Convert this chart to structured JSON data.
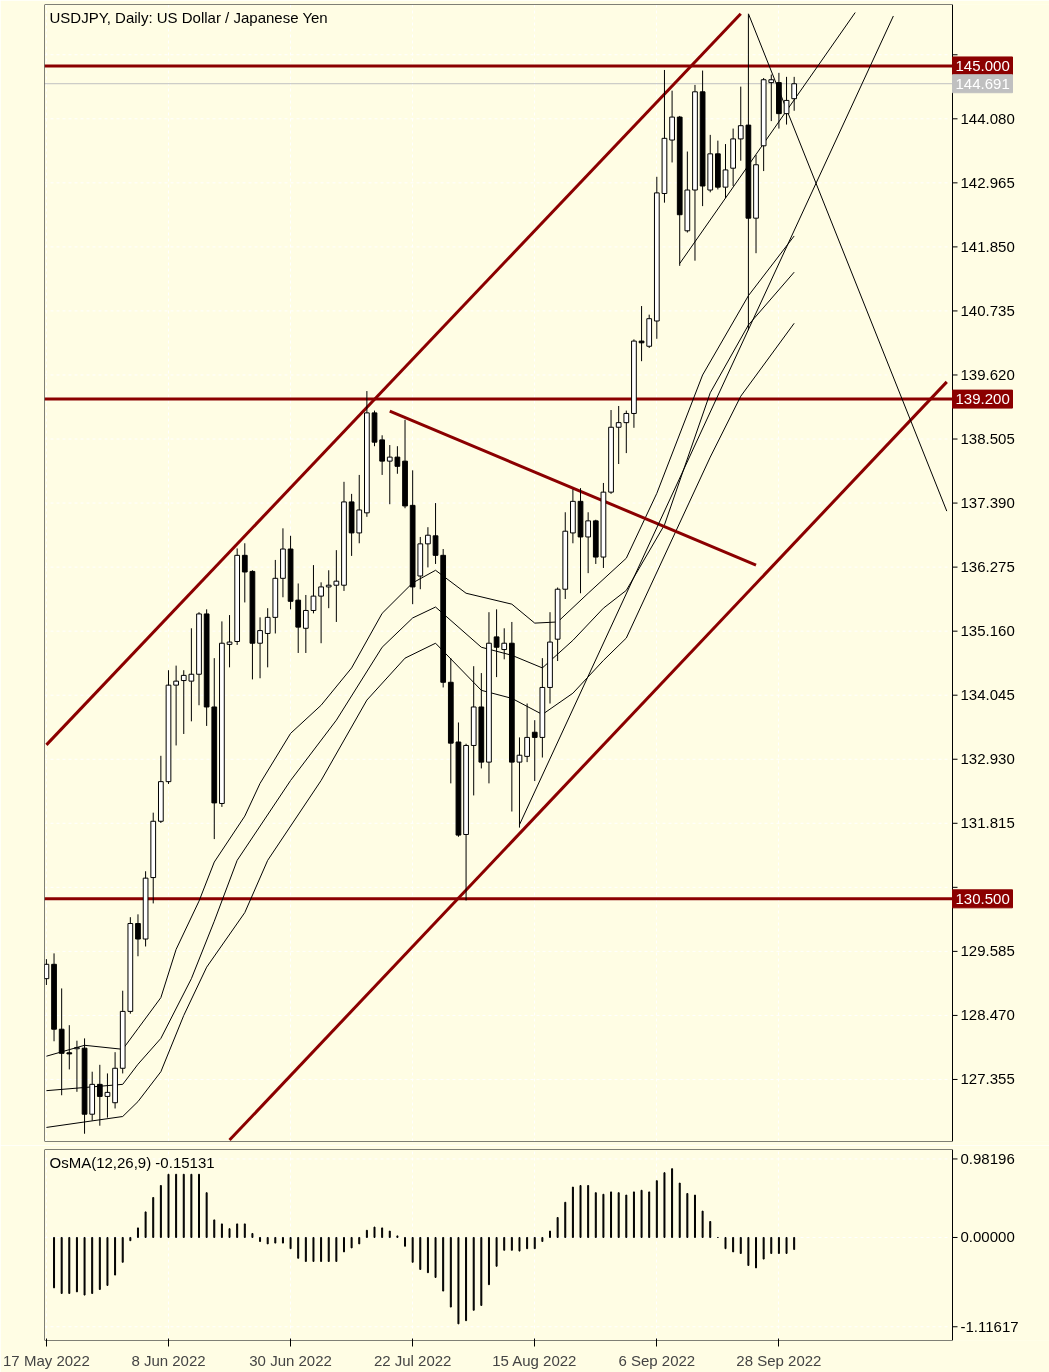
{
  "chart_data": [
    {
      "type": "candlestick",
      "title": "USDJPY, Daily:  US Dollar / Japanese Yen",
      "categories": [
        "17 May 2022",
        null,
        null,
        null,
        null,
        null,
        null,
        null,
        null,
        null,
        null,
        null,
        null,
        null,
        null,
        null,
        "8 Jun 2022",
        null,
        null,
        null,
        null,
        null,
        null,
        null,
        null,
        null,
        null,
        null,
        null,
        null,
        null,
        null,
        "30 Jun 2022",
        null,
        null,
        null,
        null,
        null,
        null,
        null,
        null,
        null,
        null,
        null,
        null,
        null,
        null,
        null,
        "22 Jul 2022",
        null,
        null,
        null,
        null,
        null,
        null,
        null,
        null,
        null,
        null,
        null,
        null,
        null,
        null,
        null,
        "15 Aug 2022",
        null,
        null,
        null,
        null,
        null,
        null,
        null,
        null,
        null,
        null,
        null,
        null,
        null,
        null,
        null,
        "6 Sep 2022",
        null,
        null,
        null,
        null,
        null,
        null,
        null,
        null,
        null,
        null,
        null,
        null,
        null,
        null,
        null,
        "28 Sep 2022",
        null,
        null,
        null,
        null,
        null,
        null,
        null,
        null,
        null,
        null,
        null,
        null,
        null,
        null,
        null,
        null,
        null,
        null,
        null,
        null,
        null,
        null
      ],
      "ylim": [
        126.275,
        146.07
      ],
      "yticks": [
        127.355,
        {
          "value": 128.47,
          "label": "128.470"
        },
        129.585,
        {
          "value": 130.7,
          "label": null
        },
        131.815,
        {
          "value": 132.93,
          "label": "132.930"
        },
        134.045,
        {
          "value": 135.16,
          "label": "135.160"
        },
        136.275,
        {
          "value": 137.39,
          "label": "137.390"
        },
        138.505,
        {
          "value": 139.62,
          "label": "139.620"
        },
        140.735,
        {
          "value": 141.85,
          "label": "141.850"
        },
        142.965,
        {
          "value": 144.08,
          "label": "144.080"
        },
        {
          "value": 145.195,
          "label": null
        }
      ],
      "tick_labels": "y",
      "grid": true,
      "ohlc": [
        [
          129.11,
          129.45,
          129.0,
          129.36
        ],
        [
          129.36,
          129.55,
          128.02,
          128.23
        ],
        [
          128.23,
          128.94,
          127.08,
          127.81
        ],
        [
          127.82,
          128.3,
          127.53,
          127.8
        ],
        [
          127.89,
          128.03,
          127.14,
          127.91
        ],
        [
          127.9,
          128.07,
          126.41,
          126.75
        ],
        [
          126.75,
          127.49,
          126.64,
          127.27
        ],
        [
          127.27,
          127.61,
          126.55,
          127.06
        ],
        [
          127.06,
          127.46,
          126.69,
          127.13
        ],
        [
          126.95,
          127.83,
          126.85,
          127.55
        ],
        [
          127.55,
          128.9,
          127.46,
          128.54
        ],
        [
          128.54,
          130.18,
          128.5,
          130.07
        ],
        [
          130.07,
          130.23,
          129.5,
          129.8
        ],
        [
          129.8,
          130.98,
          129.67,
          130.86
        ],
        [
          130.87,
          132.0,
          130.42,
          131.85
        ],
        [
          131.85,
          132.99,
          131.82,
          132.54
        ],
        [
          132.54,
          134.48,
          132.5,
          134.22
        ],
        [
          134.22,
          134.56,
          133.17,
          134.29
        ],
        [
          134.3,
          134.48,
          133.37,
          134.39
        ],
        [
          134.29,
          135.21,
          133.59,
          134.41
        ],
        [
          134.41,
          135.49,
          133.87,
          135.46
        ],
        [
          135.46,
          135.54,
          133.51,
          133.84
        ],
        [
          133.84,
          134.69,
          131.54,
          132.17
        ],
        [
          132.16,
          135.33,
          132.1,
          134.95
        ],
        [
          134.93,
          135.44,
          134.53,
          134.97
        ],
        [
          134.98,
          136.6,
          134.92,
          136.48
        ],
        [
          136.48,
          136.69,
          135.66,
          136.19
        ],
        [
          136.2,
          136.22,
          134.32,
          134.95
        ],
        [
          134.95,
          135.4,
          134.34,
          135.17
        ],
        [
          135.12,
          135.56,
          134.53,
          135.4
        ],
        [
          135.4,
          136.4,
          135.12,
          136.08
        ],
        [
          136.08,
          136.95,
          135.75,
          136.59
        ],
        [
          136.59,
          136.82,
          135.54,
          135.68
        ],
        [
          135.7,
          135.99,
          134.78,
          135.23
        ],
        [
          135.21,
          135.79,
          134.78,
          135.52
        ],
        [
          135.52,
          136.31,
          135.47,
          135.77
        ],
        [
          135.77,
          136.01,
          134.95,
          135.93
        ],
        [
          135.93,
          136.22,
          135.56,
          135.96
        ],
        [
          135.96,
          136.57,
          135.32,
          136.03
        ],
        [
          135.96,
          137.76,
          135.86,
          137.41
        ],
        [
          137.41,
          137.55,
          136.47,
          136.87
        ],
        [
          136.87,
          137.88,
          136.69,
          137.27
        ],
        [
          137.22,
          139.34,
          137.15,
          138.96
        ],
        [
          138.96,
          139.0,
          138.38,
          138.45
        ],
        [
          138.49,
          138.57,
          137.88,
          138.12
        ],
        [
          138.12,
          138.4,
          137.37,
          138.19
        ],
        [
          138.19,
          138.38,
          137.9,
          138.03
        ],
        [
          138.12,
          138.84,
          137.3,
          137.34
        ],
        [
          137.35,
          137.96,
          135.63,
          135.93
        ],
        [
          136.12,
          136.8,
          135.89,
          136.68
        ],
        [
          136.68,
          136.97,
          136.27,
          136.83
        ],
        [
          136.82,
          137.39,
          136.33,
          136.48
        ],
        [
          136.48,
          136.59,
          134.18,
          134.27
        ],
        [
          134.27,
          134.69,
          132.51,
          133.21
        ],
        [
          133.23,
          133.57,
          131.58,
          131.61
        ],
        [
          131.62,
          133.2,
          130.47,
          133.17
        ],
        [
          133.17,
          134.55,
          132.3,
          133.84
        ],
        [
          133.84,
          134.43,
          132.77,
          132.88
        ],
        [
          132.88,
          135.49,
          132.51,
          134.95
        ],
        [
          135.06,
          135.54,
          134.36,
          134.88
        ],
        [
          134.84,
          135.21,
          134.67,
          134.95
        ],
        [
          134.95,
          135.32,
          132.02,
          132.88
        ],
        [
          132.88,
          133.31,
          131.74,
          133.0
        ],
        [
          132.98,
          133.9,
          132.88,
          133.31
        ],
        [
          133.4,
          133.61,
          132.55,
          133.31
        ],
        [
          133.31,
          134.69,
          132.96,
          134.18
        ],
        [
          134.18,
          135.49,
          133.9,
          134.97
        ],
        [
          135.02,
          135.92,
          134.64,
          135.89
        ],
        [
          135.89,
          137.23,
          135.72,
          136.9
        ],
        [
          136.87,
          137.63,
          136.69,
          137.42
        ],
        [
          137.42,
          137.65,
          135.82,
          136.8
        ],
        [
          136.8,
          137.23,
          136.17,
          137.08
        ],
        [
          137.08,
          137.1,
          136.33,
          136.45
        ],
        [
          136.45,
          137.74,
          136.26,
          137.58
        ],
        [
          137.58,
          139.01,
          137.55,
          138.71
        ],
        [
          138.71,
          139.08,
          138.07,
          138.79
        ],
        [
          138.79,
          139.0,
          138.26,
          138.95
        ],
        [
          138.95,
          140.24,
          138.7,
          140.21
        ],
        [
          140.21,
          140.82,
          139.86,
          140.18
        ],
        [
          140.12,
          140.67,
          140.09,
          140.6
        ],
        [
          140.56,
          143.07,
          140.25,
          142.79
        ],
        [
          142.78,
          144.93,
          142.62,
          143.74
        ],
        [
          143.71,
          144.57,
          143.32,
          144.11
        ],
        [
          144.11,
          144.13,
          141.52,
          142.41
        ],
        [
          142.13,
          143.51,
          142.1,
          142.84
        ],
        [
          142.84,
          144.67,
          141.61,
          144.55
        ],
        [
          144.55,
          144.92,
          142.56,
          142.91
        ],
        [
          142.84,
          143.8,
          142.8,
          143.47
        ],
        [
          143.47,
          143.7,
          142.85,
          142.89
        ],
        [
          142.89,
          143.64,
          142.7,
          143.19
        ],
        [
          143.22,
          143.91,
          142.91,
          143.73
        ],
        [
          143.73,
          144.64,
          143.35,
          143.96
        ],
        [
          143.97,
          145.9,
          140.4,
          142.35
        ],
        [
          142.35,
          143.45,
          141.74,
          143.28
        ],
        [
          143.61,
          144.79,
          143.17,
          144.76
        ],
        [
          144.71,
          144.85,
          144.04,
          144.76
        ],
        [
          144.71,
          144.88,
          143.91,
          144.17
        ],
        [
          144.17,
          144.81,
          143.98,
          144.4
        ],
        [
          144.43,
          144.81,
          144.22,
          144.69
        ],
        null,
        null,
        null,
        null,
        null,
        null,
        null,
        null,
        null,
        null,
        null,
        null,
        null,
        null,
        null,
        null,
        null,
        null,
        null,
        null
      ],
      "series": [
        {
          "type": "line",
          "color": "#000000",
          "values": [
            127.76,
            null,
            null,
            null,
            null,
            127.95,
            null,
            null,
            null,
            null,
            127.88,
            null,
            128.24,
            null,
            null,
            128.78,
            null,
            129.62,
            null,
            null,
            130.46,
            null,
            131.14,
            null,
            null,
            null,
            131.94,
            null,
            132.51,
            null,
            null,
            null,
            133.38,
            null,
            null,
            null,
            133.87,
            null,
            null,
            null,
            134.52,
            null,
            null,
            null,
            135.47,
            null,
            null,
            null,
            136.0,
            null,
            null,
            136.22,
            null,
            null,
            null,
            135.82,
            null,
            null,
            null,
            null,
            null,
            135.63,
            null,
            null,
            135.3,
            null,
            null,
            135.32,
            null,
            null,
            null,
            135.82,
            null,
            null,
            null,
            null,
            136.43,
            null,
            null,
            null,
            137.56,
            null,
            null,
            null,
            null,
            null,
            139.62,
            null,
            null,
            null,
            null,
            null,
            141.0,
            null,
            null,
            null,
            null,
            null,
            142.04,
            null,
            null,
            null,
            null,
            null,
            null,
            null,
            null,
            null,
            null,
            null,
            null,
            null,
            null,
            null,
            null,
            null,
            null,
            null,
            null
          ]
        },
        {
          "type": "line",
          "color": "#000000",
          "values": [
            127.16,
            null,
            null,
            null,
            null,
            null,
            null,
            null,
            null,
            null,
            127.27,
            null,
            127.62,
            null,
            null,
            128.07,
            null,
            null,
            null,
            129.11,
            null,
            null,
            130.11,
            null,
            null,
            131.17,
            null,
            null,
            null,
            null,
            null,
            null,
            132.56,
            null,
            null,
            null,
            null,
            null,
            133.61,
            null,
            null,
            null,
            null,
            null,
            134.88,
            null,
            null,
            null,
            135.39,
            null,
            null,
            135.58,
            null,
            null,
            null,
            null,
            null,
            134.88,
            null,
            null,
            null,
            134.74,
            null,
            null,
            null,
            134.52,
            null,
            null,
            null,
            135.0,
            null,
            null,
            null,
            135.56,
            null,
            null,
            135.87,
            null,
            null,
            null,
            null,
            137.01,
            null,
            null,
            null,
            null,
            null,
            139.31,
            null,
            null,
            null,
            null,
            140.49,
            null,
            null,
            null,
            null,
            null,
            141.41,
            null,
            null,
            null,
            null,
            null,
            null,
            null,
            null,
            null,
            null,
            null,
            null,
            null,
            null,
            null,
            null,
            null,
            null,
            null,
            null
          ]
        },
        {
          "type": "line",
          "color": "#000000",
          "values": [
            126.52,
            null,
            null,
            null,
            null,
            null,
            null,
            null,
            null,
            null,
            126.71,
            null,
            126.97,
            null,
            null,
            127.49,
            null,
            null,
            128.47,
            null,
            null,
            129.31,
            null,
            null,
            null,
            null,
            130.26,
            null,
            null,
            131.17,
            null,
            null,
            null,
            null,
            null,
            null,
            132.56,
            null,
            null,
            null,
            null,
            null,
            133.96,
            null,
            null,
            null,
            null,
            134.69,
            null,
            null,
            null,
            134.95,
            null,
            null,
            null,
            null,
            null,
            134.13,
            null,
            null,
            null,
            133.99,
            null,
            null,
            null,
            133.71,
            null,
            null,
            null,
            134.08,
            null,
            null,
            null,
            134.65,
            null,
            null,
            135.04,
            null,
            null,
            null,
            null,
            null,
            null,
            null,
            null,
            null,
            null,
            138.19,
            null,
            null,
            null,
            139.25,
            null,
            null,
            null,
            null,
            null,
            null,
            140.52,
            null,
            null,
            null,
            null,
            null,
            null,
            null,
            null,
            null,
            null,
            null,
            null,
            null,
            null,
            null,
            null,
            null,
            null,
            null,
            null
          ]
        },
        {
          "type": "line",
          "color": "#8b0000",
          "values": [
            133.18,
            null,
            null,
            null,
            null,
            null,
            null,
            null,
            null,
            null,
            null,
            null,
            null,
            null,
            null,
            null,
            null,
            null,
            null,
            null,
            null,
            null,
            null,
            null,
            null,
            null,
            null,
            null,
            null,
            null,
            null,
            null,
            null,
            null,
            null,
            null,
            null,
            null,
            null,
            null,
            null,
            null,
            null,
            null,
            null,
            null,
            null,
            null,
            null,
            null,
            null,
            null,
            null,
            null,
            null,
            null,
            null,
            null,
            null,
            null,
            null,
            null,
            null,
            null,
            null,
            null,
            null,
            null,
            null,
            null,
            null,
            null,
            null,
            null,
            null,
            null,
            null,
            null,
            null,
            null,
            null,
            null,
            null,
            null,
            null,
            null,
            null,
            null,
            null,
            null,
            null,
            145.91,
            null,
            null,
            null,
            null,
            null,
            null,
            null,
            null,
            null,
            null,
            null,
            null,
            null,
            null,
            null,
            null,
            null,
            null,
            null,
            null,
            null,
            null,
            null,
            null,
            null,
            null,
            null
          ]
        },
        {
          "type": "line",
          "color": "#8b0000",
          "values": [
            null,
            null,
            null,
            null,
            null,
            null,
            null,
            null,
            null,
            null,
            null,
            null,
            null,
            null,
            null,
            null,
            null,
            null,
            null,
            null,
            null,
            null,
            null,
            null,
            126.3,
            null,
            null,
            null,
            null,
            null,
            null,
            null,
            null,
            null,
            null,
            null,
            null,
            null,
            null,
            null,
            null,
            null,
            null,
            null,
            null,
            null,
            null,
            null,
            null,
            null,
            null,
            null,
            null,
            null,
            null,
            null,
            null,
            null,
            null,
            null,
            null,
            null,
            null,
            null,
            null,
            null,
            null,
            null,
            null,
            null,
            null,
            null,
            null,
            null,
            null,
            null,
            null,
            null,
            null,
            null,
            null,
            null,
            null,
            null,
            null,
            null,
            null,
            null,
            null,
            null,
            null,
            null,
            null,
            null,
            null,
            null,
            null,
            null,
            null,
            null,
            null,
            null,
            null,
            null,
            null,
            null,
            null,
            null,
            null,
            null,
            null,
            null,
            null,
            null,
            null,
            null,
            null,
            null,
            139.5
          ]
        },
        {
          "type": "line",
          "color": "#8b0000",
          "values": [
            null,
            null,
            null,
            null,
            null,
            null,
            null,
            null,
            null,
            null,
            null,
            null,
            null,
            null,
            null,
            null,
            null,
            null,
            null,
            null,
            null,
            null,
            null,
            null,
            null,
            null,
            null,
            null,
            null,
            null,
            null,
            null,
            null,
            null,
            null,
            null,
            null,
            null,
            null,
            null,
            null,
            null,
            null,
            null,
            null,
            138.99,
            null,
            null,
            null,
            null,
            null,
            null,
            null,
            null,
            null,
            null,
            null,
            null,
            null,
            null,
            null,
            null,
            null,
            null,
            null,
            null,
            null,
            null,
            null,
            null,
            null,
            null,
            null,
            null,
            null,
            null,
            null,
            null,
            null,
            null,
            null,
            null,
            null,
            null,
            null,
            null,
            null,
            null,
            null,
            null,
            null,
            null,
            null,
            136.31,
            null,
            null,
            null,
            null,
            null,
            null,
            null,
            null,
            null,
            null,
            null,
            null,
            null,
            null,
            null,
            null,
            null,
            null,
            null,
            null,
            null,
            null,
            null,
            null,
            null
          ]
        },
        {
          "type": "line",
          "color": "#000000",
          "values": [
            null,
            null,
            null,
            null,
            null,
            null,
            null,
            null,
            null,
            null,
            null,
            null,
            null,
            null,
            null,
            null,
            null,
            null,
            null,
            null,
            null,
            null,
            null,
            null,
            null,
            null,
            null,
            null,
            null,
            null,
            null,
            null,
            null,
            null,
            null,
            null,
            null,
            null,
            null,
            null,
            null,
            null,
            null,
            null,
            null,
            null,
            null,
            null,
            null,
            null,
            null,
            null,
            null,
            null,
            null,
            null,
            null,
            null,
            null,
            null,
            null,
            null,
            131.79,
            null,
            null,
            null,
            null,
            null,
            null,
            null,
            null,
            null,
            null,
            null,
            null,
            null,
            null,
            null,
            null,
            null,
            null,
            null,
            null,
            null,
            null,
            null,
            null,
            null,
            null,
            null,
            null,
            null,
            null,
            null,
            null,
            null,
            null,
            null,
            null,
            null,
            null,
            null,
            null,
            null,
            null,
            null,
            null,
            null,
            null,
            null,
            null,
            145.87,
            null,
            null,
            null,
            null,
            null,
            null,
            null
          ]
        },
        {
          "type": "line",
          "color": "#000000",
          "values": [
            null,
            null,
            null,
            null,
            null,
            null,
            null,
            null,
            null,
            null,
            null,
            null,
            null,
            null,
            null,
            null,
            null,
            null,
            null,
            null,
            null,
            null,
            null,
            null,
            null,
            null,
            null,
            null,
            null,
            null,
            null,
            null,
            null,
            null,
            null,
            null,
            null,
            null,
            null,
            null,
            null,
            null,
            null,
            null,
            null,
            null,
            null,
            null,
            null,
            null,
            null,
            null,
            null,
            null,
            null,
            null,
            null,
            null,
            null,
            null,
            null,
            null,
            null,
            null,
            null,
            null,
            null,
            null,
            null,
            null,
            null,
            null,
            null,
            null,
            null,
            null,
            null,
            null,
            null,
            null,
            null,
            null,
            null,
            141.56,
            null,
            null,
            null,
            null,
            null,
            null,
            null,
            null,
            null,
            null,
            null,
            null,
            null,
            null,
            null,
            null,
            null,
            null,
            null,
            null,
            null,
            null,
            145.93,
            null,
            null,
            null,
            null,
            null,
            null,
            null,
            null,
            null,
            null,
            null,
            null
          ]
        },
        {
          "type": "line",
          "color": "#000000",
          "values": [
            null,
            null,
            null,
            null,
            null,
            null,
            null,
            null,
            null,
            null,
            null,
            null,
            null,
            null,
            null,
            null,
            null,
            null,
            null,
            null,
            null,
            null,
            null,
            null,
            null,
            null,
            null,
            null,
            null,
            null,
            null,
            null,
            null,
            null,
            null,
            null,
            null,
            null,
            null,
            null,
            null,
            null,
            null,
            null,
            null,
            null,
            null,
            null,
            null,
            null,
            null,
            null,
            null,
            null,
            null,
            null,
            null,
            null,
            null,
            null,
            null,
            null,
            null,
            null,
            null,
            null,
            null,
            null,
            null,
            null,
            null,
            null,
            null,
            null,
            null,
            null,
            null,
            null,
            null,
            null,
            null,
            null,
            null,
            null,
            null,
            null,
            null,
            null,
            null,
            null,
            null,
            null,
            145.91,
            null,
            null,
            null,
            null,
            null,
            null,
            null,
            null,
            null,
            null,
            null,
            null,
            null,
            null,
            null,
            null,
            null,
            null,
            null,
            null,
            null,
            null,
            null,
            null,
            null,
            137.25
          ]
        }
      ],
      "ref_lines": [
        {
          "axis": "y",
          "value": 145.0,
          "label": "145.000",
          "color": "#8b0000"
        },
        {
          "axis": "y",
          "value": 144.691,
          "label": "144.691",
          "color": "#c0c0c0"
        },
        {
          "axis": "y",
          "value": 139.2,
          "label": "139.200",
          "color": "#8b0000"
        },
        {
          "axis": "y",
          "value": 130.5,
          "label": "130.500",
          "color": "#8b0000"
        }
      ]
    },
    {
      "type": "bar",
      "title": "OsMA(12,26,9) -0.15131",
      "color": "#000000",
      "ylim": [
        -1.288,
        1.1
      ],
      "yticks": [
        0.98196,
        {
          "value": 0,
          "label": "0.00000"
        },
        -1.11617
      ],
      "grid": true,
      "values": [
        null,
        -0.63,
        -0.7,
        -0.7,
        -0.68,
        -0.72,
        -0.7,
        -0.65,
        -0.6,
        -0.47,
        -0.31,
        -0.04,
        0.12,
        0.32,
        0.5,
        0.65,
        0.79,
        0.79,
        0.79,
        0.79,
        0.79,
        0.56,
        0.22,
        0.17,
        0.11,
        0.17,
        0.17,
        0.05,
        -0.05,
        -0.08,
        -0.07,
        -0.07,
        -0.14,
        -0.26,
        -0.3,
        -0.3,
        -0.3,
        -0.3,
        -0.3,
        -0.18,
        -0.13,
        -0.08,
        0.09,
        0.13,
        0.12,
        0.08,
        0.02,
        -0.11,
        -0.31,
        -0.4,
        -0.44,
        -0.5,
        -0.67,
        -0.87,
        -1.08,
        -1.04,
        -0.91,
        -0.85,
        -0.59,
        -0.36,
        -0.16,
        -0.16,
        -0.17,
        -0.14,
        -0.14,
        -0.05,
        0.08,
        0.25,
        0.44,
        0.63,
        0.65,
        0.65,
        0.56,
        0.54,
        0.57,
        0.56,
        0.53,
        0.57,
        0.59,
        0.57,
        0.71,
        0.81,
        0.86,
        0.68,
        0.55,
        0.53,
        0.33,
        0.2,
        0.0,
        -0.14,
        -0.18,
        -0.2,
        -0.35,
        -0.38,
        -0.27,
        -0.2,
        -0.2,
        -0.2,
        -0.15,
        null,
        null,
        null,
        null,
        null,
        null,
        null,
        null,
        null,
        null,
        null,
        null,
        null,
        null,
        null,
        null,
        null,
        null,
        null,
        null
      ]
    }
  ]
}
